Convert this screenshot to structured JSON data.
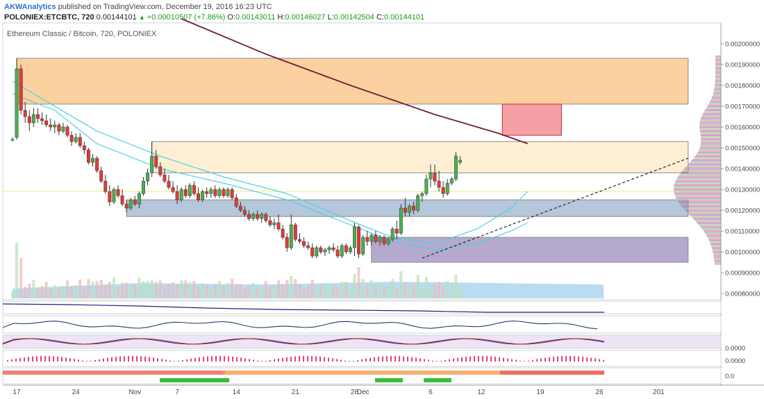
{
  "header": {
    "author": "AKWAnalytics",
    "published_text": "published on TradingView.com, December 19, 2016 16:23 UTC",
    "symbol": "POLONIEX:ETCBTC, 720",
    "last": "0.00144101",
    "change": "+0.00010507 (+7.86%)",
    "o_label": "O:",
    "o_value": "0.00143011",
    "h_label": "H:",
    "h_value": "0.00146027",
    "l_label": "L:",
    "l_value": "0.00142504",
    "c_label": "C:",
    "c_value": "0.00144101"
  },
  "chart_legend": "Ethereum Classic / Bitcoin, 720, POLONIEX",
  "colors": {
    "up": "#4caf50",
    "down": "#e53935",
    "ma_dark": "#6d1b3a",
    "ma_cyan": "#4dd0e1",
    "zone_orange": "#f9c27f",
    "zone_cream": "#fde9c6",
    "zone_blue": "#9bb4cf",
    "zone_purple": "#9c8cbc",
    "zone_red": "#f4a0a5",
    "volume_base": "#a8d3ee"
  },
  "chart_data": {
    "type": "candlestick",
    "price_range": [
      0.00077,
      0.0021
    ],
    "price_ticks": [
      "0.00200000",
      "0.00190000",
      "0.00180000",
      "0.00170000",
      "0.00160000",
      "0.00150000",
      "0.00140000",
      "0.00130000",
      "0.00120000",
      "0.00110000",
      "0.00100000",
      "0.00090000",
      "0.00080000"
    ],
    "date_ticks": [
      {
        "label": "17",
        "i": 1
      },
      {
        "label": "24",
        "i": 15
      },
      {
        "label": "Nov",
        "i": 29
      },
      {
        "label": "7",
        "i": 39
      },
      {
        "label": "14",
        "i": 53
      },
      {
        "label": "21",
        "i": 67
      },
      {
        "label": "28",
        "i": 81
      },
      {
        "label": "Dec",
        "i": 83
      },
      {
        "label": "6",
        "i": 99
      },
      {
        "label": "12",
        "i": 111
      },
      {
        "label": "19",
        "i": 125
      },
      {
        "label": "26",
        "i": 139
      },
      {
        "label": "201",
        "i": 153
      }
    ],
    "candles": [
      [
        0.00154,
        0.00155,
        0.00153,
        0.00154
      ],
      [
        0.00155,
        0.00193,
        0.00154,
        0.00188
      ],
      [
        0.00188,
        0.0019,
        0.00166,
        0.00168
      ],
      [
        0.00168,
        0.00172,
        0.00162,
        0.00165
      ],
      [
        0.00165,
        0.00168,
        0.00158,
        0.00162
      ],
      [
        0.00162,
        0.00169,
        0.0016,
        0.00166
      ],
      [
        0.00166,
        0.00169,
        0.00162,
        0.00164
      ],
      [
        0.00164,
        0.00167,
        0.00161,
        0.00163
      ],
      [
        0.00163,
        0.00166,
        0.0016,
        0.00161
      ],
      [
        0.00161,
        0.00164,
        0.00158,
        0.0016
      ],
      [
        0.0016,
        0.00163,
        0.00157,
        0.00161
      ],
      [
        0.00161,
        0.00162,
        0.00156,
        0.00158
      ],
      [
        0.00158,
        0.00162,
        0.00157,
        0.0016
      ],
      [
        0.0016,
        0.00161,
        0.00155,
        0.00156
      ],
      [
        0.00156,
        0.00158,
        0.00151,
        0.00153
      ],
      [
        0.00153,
        0.00157,
        0.00152,
        0.00155
      ],
      [
        0.00155,
        0.00157,
        0.0015,
        0.00151
      ],
      [
        0.00151,
        0.00153,
        0.00147,
        0.00149
      ],
      [
        0.00149,
        0.0015,
        0.00142,
        0.00143
      ],
      [
        0.00143,
        0.00147,
        0.00141,
        0.00145
      ],
      [
        0.00145,
        0.00146,
        0.00138,
        0.00139
      ],
      [
        0.00139,
        0.00141,
        0.00133,
        0.00134
      ],
      [
        0.00134,
        0.00137,
        0.00128,
        0.00129
      ],
      [
        0.00129,
        0.00132,
        0.00122,
        0.00124
      ],
      [
        0.00124,
        0.00131,
        0.00123,
        0.0013
      ],
      [
        0.0013,
        0.00132,
        0.00126,
        0.00127
      ],
      [
        0.00127,
        0.0013,
        0.00122,
        0.00123
      ],
      [
        0.00123,
        0.00125,
        0.00119,
        0.00121
      ],
      [
        0.00121,
        0.00126,
        0.0012,
        0.00125
      ],
      [
        0.00125,
        0.00127,
        0.00122,
        0.00123
      ],
      [
        0.00123,
        0.00129,
        0.00121,
        0.00128
      ],
      [
        0.00128,
        0.00136,
        0.00127,
        0.00134
      ],
      [
        0.00134,
        0.0014,
        0.00132,
        0.00138
      ],
      [
        0.00138,
        0.00153,
        0.00136,
        0.00146
      ],
      [
        0.00146,
        0.00149,
        0.0014,
        0.00141
      ],
      [
        0.00141,
        0.00143,
        0.00136,
        0.00137
      ],
      [
        0.00137,
        0.0014,
        0.00133,
        0.00134
      ],
      [
        0.00134,
        0.00137,
        0.0013,
        0.00131
      ],
      [
        0.00131,
        0.00134,
        0.00128,
        0.00129
      ],
      [
        0.00129,
        0.00132,
        0.00123,
        0.00125
      ],
      [
        0.00125,
        0.00131,
        0.00124,
        0.0013
      ],
      [
        0.0013,
        0.00132,
        0.00126,
        0.00127
      ],
      [
        0.00127,
        0.00133,
        0.00126,
        0.00132
      ],
      [
        0.00132,
        0.00134,
        0.00127,
        0.00128
      ],
      [
        0.00128,
        0.00131,
        0.00124,
        0.00125
      ],
      [
        0.00125,
        0.0013,
        0.00124,
        0.00129
      ],
      [
        0.00129,
        0.00131,
        0.00126,
        0.00128
      ],
      [
        0.00128,
        0.00131,
        0.00126,
        0.0013
      ],
      [
        0.0013,
        0.00132,
        0.00126,
        0.00127
      ],
      [
        0.00127,
        0.00131,
        0.00126,
        0.0013
      ],
      [
        0.0013,
        0.00131,
        0.00126,
        0.00127
      ],
      [
        0.00127,
        0.00131,
        0.00126,
        0.0013
      ],
      [
        0.0013,
        0.00131,
        0.00125,
        0.00126
      ],
      [
        0.00126,
        0.00128,
        0.00121,
        0.00122
      ],
      [
        0.00122,
        0.00124,
        0.00119,
        0.0012
      ],
      [
        0.0012,
        0.00122,
        0.00117,
        0.00118
      ],
      [
        0.00118,
        0.0012,
        0.00115,
        0.00116
      ],
      [
        0.00116,
        0.00119,
        0.00115,
        0.00118
      ],
      [
        0.00118,
        0.0012,
        0.00115,
        0.00116
      ],
      [
        0.00116,
        0.00119,
        0.00114,
        0.00118
      ],
      [
        0.00118,
        0.00119,
        0.00114,
        0.00115
      ],
      [
        0.00115,
        0.00117,
        0.00112,
        0.00113
      ],
      [
        0.00113,
        0.00116,
        0.00111,
        0.00114
      ],
      [
        0.00114,
        0.00118,
        0.0011,
        0.00111
      ],
      [
        0.00111,
        0.00113,
        0.00106,
        0.00107
      ],
      [
        0.00107,
        0.00109,
        0.001,
        0.00102
      ],
      [
        0.00102,
        0.00118,
        0.00101,
        0.00113
      ],
      [
        0.00113,
        0.00114,
        0.00105,
        0.00106
      ],
      [
        0.00106,
        0.00109,
        0.00104,
        0.00105
      ],
      [
        0.00105,
        0.00107,
        0.00102,
        0.00103
      ],
      [
        0.00103,
        0.00105,
        0.00101,
        0.00102
      ],
      [
        0.00102,
        0.00104,
        0.00097,
        0.00098
      ],
      [
        0.00098,
        0.00103,
        0.00097,
        0.00102
      ],
      [
        0.00102,
        0.00103,
        0.00099,
        0.001
      ],
      [
        0.001,
        0.00102,
        0.00098,
        0.00101
      ],
      [
        0.00101,
        0.00103,
        0.00099,
        0.00102
      ],
      [
        0.00102,
        0.00104,
        0.001,
        0.00101
      ],
      [
        0.00101,
        0.00103,
        0.00097,
        0.00098
      ],
      [
        0.00098,
        0.00104,
        0.00097,
        0.00103
      ],
      [
        0.00103,
        0.00104,
        0.00099,
        0.001
      ],
      [
        0.001,
        0.00103,
        0.00099,
        0.00102
      ],
      [
        0.00102,
        0.00114,
        0.00098,
        0.00112
      ],
      [
        0.00112,
        0.00113,
        0.00097,
        0.00099
      ],
      [
        0.00099,
        0.00108,
        0.00098,
        0.00107
      ],
      [
        0.00107,
        0.0011,
        0.00103,
        0.00105
      ],
      [
        0.00105,
        0.00109,
        0.00103,
        0.00108
      ],
      [
        0.00108,
        0.0011,
        0.00104,
        0.00105
      ],
      [
        0.00105,
        0.00108,
        0.00103,
        0.00107
      ],
      [
        0.00107,
        0.00108,
        0.00103,
        0.00104
      ],
      [
        0.00104,
        0.00107,
        0.00103,
        0.00106
      ],
      [
        0.00106,
        0.00112,
        0.00105,
        0.00111
      ],
      [
        0.00111,
        0.00115,
        0.00106,
        0.00109
      ],
      [
        0.00109,
        0.00123,
        0.00108,
        0.00121
      ],
      [
        0.00121,
        0.00126,
        0.00117,
        0.00119
      ],
      [
        0.00119,
        0.00123,
        0.00117,
        0.00122
      ],
      [
        0.00122,
        0.00124,
        0.00118,
        0.0012
      ],
      [
        0.0012,
        0.00128,
        0.00119,
        0.00127
      ],
      [
        0.00127,
        0.00129,
        0.00124,
        0.00128
      ],
      [
        0.00128,
        0.00137,
        0.00127,
        0.00135
      ],
      [
        0.00135,
        0.00142,
        0.00131,
        0.00138
      ],
      [
        0.00138,
        0.00142,
        0.00132,
        0.00134
      ],
      [
        0.00134,
        0.00139,
        0.00129,
        0.00131
      ],
      [
        0.00131,
        0.00134,
        0.00126,
        0.00128
      ],
      [
        0.00128,
        0.00135,
        0.00127,
        0.00133
      ],
      [
        0.00133,
        0.00136,
        0.00132,
        0.00135
      ],
      [
        0.00135,
        0.00148,
        0.00134,
        0.00146
      ],
      [
        0.00143,
        0.00146,
        0.00142,
        0.00144
      ]
    ],
    "moving_averages": [
      {
        "color": "#6d1b3a",
        "values": [
          [
            40,
            0.00212
          ],
          [
            60,
            0.00195
          ],
          [
            80,
            0.0018
          ],
          [
            100,
            0.00166
          ],
          [
            115,
            0.00157
          ],
          [
            122,
            0.00152
          ]
        ]
      },
      {
        "color": "#4dd0e1",
        "values": [
          [
            0,
            0.00182
          ],
          [
            10,
            0.0017
          ],
          [
            20,
            0.00158
          ],
          [
            35,
            0.00146
          ],
          [
            50,
            0.00136
          ],
          [
            65,
            0.00128
          ],
          [
            80,
            0.00115
          ],
          [
            90,
            0.00107
          ],
          [
            100,
            0.00104
          ],
          [
            110,
            0.00111
          ],
          [
            118,
            0.00121
          ],
          [
            122,
            0.00129
          ]
        ]
      },
      {
        "color": "#4dd0e1",
        "values": [
          [
            0,
            0.00176
          ],
          [
            10,
            0.00168
          ],
          [
            20,
            0.00152
          ],
          [
            35,
            0.0014
          ],
          [
            50,
            0.00133
          ],
          [
            65,
            0.00125
          ],
          [
            80,
            0.00113
          ],
          [
            90,
            0.00105
          ],
          [
            100,
            0.00101
          ],
          [
            110,
            0.00104
          ],
          [
            118,
            0.0011
          ],
          [
            122,
            0.00114
          ]
        ]
      }
    ],
    "zones": [
      {
        "name": "zone-orange",
        "i0": 1,
        "i1": 160,
        "p_top": 0.00193,
        "p_bot": 0.00171,
        "color": "#f9c27f"
      },
      {
        "name": "zone-cream",
        "i0": 33,
        "i1": 160,
        "p_top": 0.00153,
        "p_bot": 0.00138,
        "color": "#fde9c6"
      },
      {
        "name": "zone-blue",
        "i0": 27,
        "i1": 160,
        "p_top": 0.00125,
        "p_bot": 0.00117,
        "color": "#9bb4cf"
      },
      {
        "name": "zone-purple",
        "i0": 85,
        "i1": 160,
        "p_top": 0.00107,
        "p_bot": 0.00095,
        "color": "#9c8cbc"
      },
      {
        "name": "zone-red",
        "i0": 116,
        "i1": 130,
        "p_top": 0.00171,
        "p_bot": 0.00156,
        "color": "#f4a0a5"
      }
    ],
    "trendline": {
      "i0": 97,
      "p0": 0.00097,
      "i1": 160,
      "p1": 0.00145
    },
    "hline": 0.00129
  }
}
